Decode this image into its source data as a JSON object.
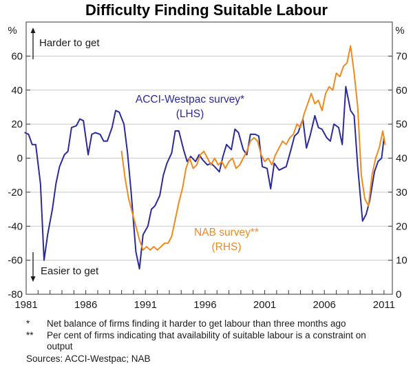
{
  "chart_data": {
    "type": "line",
    "title": "Difficulty Finding Suitable Labour",
    "left_axis": {
      "unit": "%",
      "ylim": [
        -80,
        80
      ],
      "ticks": [
        -80,
        -60,
        -40,
        -20,
        0,
        20,
        40,
        60
      ],
      "tick_labels": [
        "-80",
        "-60",
        "-40",
        "-20",
        "0",
        "20",
        "40",
        "60"
      ]
    },
    "right_axis": {
      "unit": "%",
      "ylim": [
        0,
        80
      ],
      "ticks": [
        0,
        10,
        20,
        30,
        40,
        50,
        60,
        70
      ],
      "tick_labels": [
        "0",
        "10",
        "20",
        "30",
        "40",
        "50",
        "60",
        "70"
      ]
    },
    "x_axis": {
      "xlim": [
        1981,
        2011.7
      ],
      "ticks": [
        1981,
        1986,
        1991,
        1996,
        2001,
        2006,
        2011
      ],
      "tick_labels": [
        "1981",
        "1986",
        "1991",
        "1996",
        "2001",
        "2006",
        "2011"
      ]
    },
    "annotations": {
      "harder": "Harder to get",
      "easier": "Easier to get"
    },
    "series": [
      {
        "name": "ACCI-Westpac survey*",
        "sublabel": "(LHS)",
        "axis": "left",
        "color": "#2a2a9a",
        "x": [
          1980.9,
          1981.2,
          1981.5,
          1981.8,
          1982.2,
          1982.5,
          1982.8,
          1983.2,
          1983.5,
          1983.8,
          1984.2,
          1984.5,
          1984.8,
          1985.2,
          1985.5,
          1985.8,
          1986.2,
          1986.5,
          1986.8,
          1987.2,
          1987.5,
          1987.8,
          1988.2,
          1988.5,
          1988.8,
          1989.2,
          1989.5,
          1989.8,
          1990.2,
          1990.5,
          1990.8,
          1991.2,
          1991.5,
          1991.8,
          1992.2,
          1992.5,
          1992.8,
          1993.2,
          1993.5,
          1993.8,
          1994.2,
          1994.5,
          1994.8,
          1995.2,
          1995.5,
          1995.8,
          1996.2,
          1996.5,
          1996.8,
          1997.2,
          1997.5,
          1997.8,
          1998.2,
          1998.5,
          1998.8,
          1999.2,
          1999.5,
          1999.8,
          2000.2,
          2000.5,
          2000.8,
          2001.2,
          2001.5,
          2001.8,
          2002.2,
          2002.5,
          2002.8,
          2003.2,
          2003.5,
          2003.8,
          2004.2,
          2004.5,
          2004.8,
          2005.2,
          2005.5,
          2005.8,
          2006.2,
          2006.5,
          2006.8,
          2007.2,
          2007.5,
          2007.8,
          2008.2,
          2008.5,
          2008.8,
          2009.2,
          2009.5,
          2009.8,
          2010.2,
          2010.5,
          2010.8,
          2011.0
        ],
        "values": [
          15,
          14,
          8,
          8,
          -15,
          -60,
          -45,
          -30,
          -15,
          -5,
          2,
          4,
          18,
          19,
          23,
          22,
          2,
          14,
          15,
          14,
          10,
          10,
          18,
          28,
          27,
          20,
          3,
          -20,
          -55,
          -65,
          -45,
          -40,
          -30,
          -28,
          -22,
          -10,
          -3,
          3,
          16,
          16,
          5,
          -2,
          1,
          -2,
          2,
          -1,
          -4,
          -3,
          -5,
          -8,
          1,
          8,
          5,
          17,
          15,
          5,
          2,
          14,
          14,
          13,
          -5,
          -6,
          -18,
          -3,
          -7,
          -6,
          -5,
          5,
          13,
          15,
          23,
          6,
          13,
          25,
          18,
          17,
          12,
          10,
          20,
          18,
          8,
          42,
          28,
          25,
          -5,
          -37,
          -33,
          -25,
          -8,
          -2,
          0,
          12
        ]
      },
      {
        "name": "NAB survey**",
        "sublabel": "(RHS)",
        "axis": "right",
        "color": "#f08a1c",
        "x": [
          1989.0,
          1989.3,
          1989.6,
          1989.9,
          1990.2,
          1990.5,
          1990.8,
          1991.1,
          1991.4,
          1991.7,
          1992.0,
          1992.3,
          1992.6,
          1992.9,
          1993.2,
          1993.5,
          1993.8,
          1994.1,
          1994.4,
          1994.7,
          1995.0,
          1995.3,
          1995.6,
          1995.9,
          1996.2,
          1996.5,
          1996.8,
          1997.1,
          1997.4,
          1997.7,
          1998.0,
          1998.3,
          1998.6,
          1998.9,
          1999.2,
          1999.5,
          1999.8,
          2000.1,
          2000.4,
          2000.7,
          2001.0,
          2001.3,
          2001.6,
          2001.9,
          2002.2,
          2002.5,
          2002.8,
          2003.1,
          2003.4,
          2003.7,
          2004.0,
          2004.3,
          2004.6,
          2004.9,
          2005.2,
          2005.5,
          2005.8,
          2006.1,
          2006.4,
          2006.7,
          2007.0,
          2007.3,
          2007.6,
          2007.9,
          2008.2,
          2008.5,
          2008.8,
          2009.1,
          2009.4,
          2009.7,
          2010.0,
          2010.3,
          2010.6,
          2010.9,
          2011.1
        ],
        "values": [
          42,
          34,
          28,
          24,
          20,
          16,
          13,
          14,
          13,
          14,
          13,
          14,
          15,
          15,
          17,
          22,
          27,
          31,
          37,
          40,
          37,
          38,
          41,
          42,
          40,
          38,
          40,
          38,
          39,
          37,
          39,
          40,
          37,
          38,
          40,
          42,
          45,
          46,
          45,
          41,
          39,
          40,
          38,
          41,
          43,
          45,
          44,
          46,
          47,
          50,
          49,
          53,
          56,
          59,
          56,
          57,
          54,
          59,
          61,
          60,
          65,
          64,
          67,
          68,
          73,
          65,
          55,
          35,
          28,
          26,
          35,
          40,
          43,
          48,
          44
        ]
      }
    ],
    "footnotes": [
      {
        "mark": "*",
        "text": "Net balance of firms finding it harder to get labour than three months ago"
      },
      {
        "mark": "**",
        "text": "Per cent of firms indicating that availability of suitable labour is a constraint on output"
      }
    ],
    "sources": "Sources: ACCI-Westpac; NAB"
  }
}
